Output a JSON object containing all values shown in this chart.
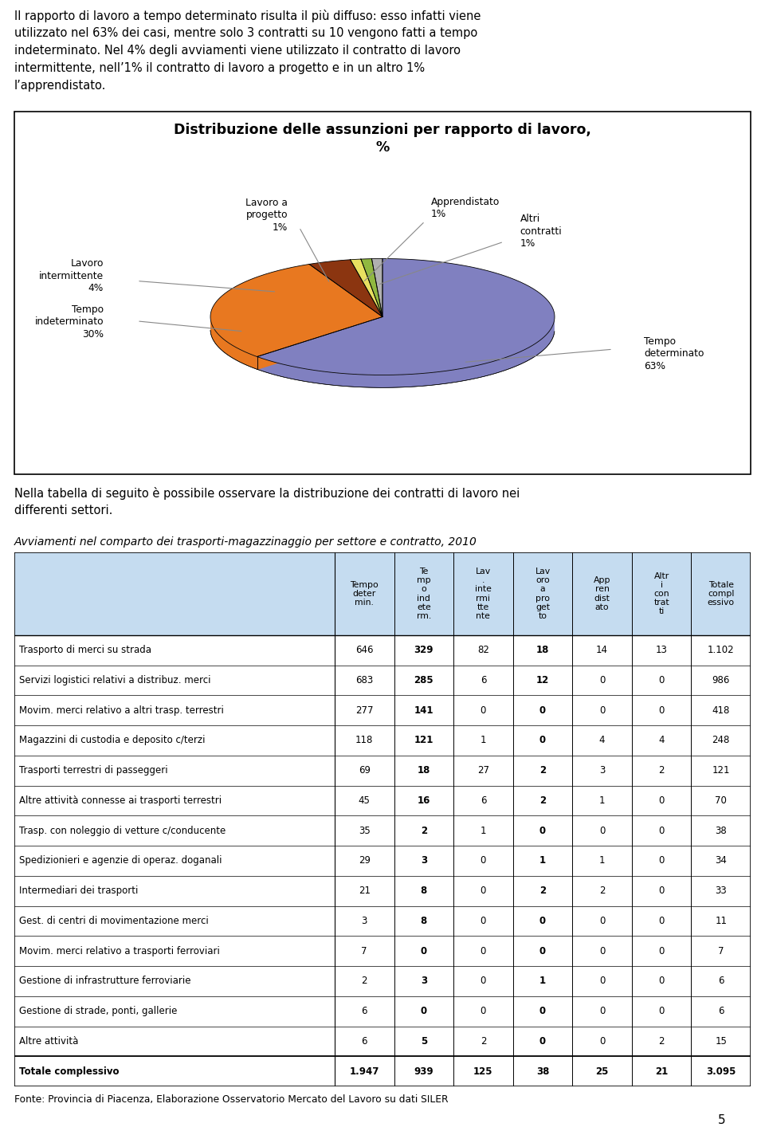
{
  "chart_title": "Distribuzione delle assunzioni per rapporto di lavoro,\n%",
  "pie_values": [
    63,
    30,
    4,
    1,
    1,
    1
  ],
  "pie_colors": [
    "#8080C0",
    "#E87820",
    "#8B3510",
    "#E8E060",
    "#90B840",
    "#B0B0B0"
  ],
  "pie_label_texts": [
    "Tempo\ndeterminato\n63%",
    "Tempo\nindeterminato\n30%",
    "Lavoro\nintermittente\n4%",
    "Lavoro a\nprogetto\n1%",
    "Apprendistato\n1%",
    "Altri\ncontratti\n1%"
  ],
  "below_chart_text": "Nella tabella di seguito è possibile osservare la distribuzione dei contratti di lavoro nei\ndifferenti settori.",
  "table_title": "Avviamenti nel comparto dei trasporti-magazzinaggio per settore e contratto, 2010",
  "col_headers": [
    "Tempo\ndeter\nmin.",
    "Te\nmp\no\nind\nete\nrm.",
    "Lav\n.\ninte\nrmi\ntte\nnte",
    "Lav\noro\na\npro\nget\nto",
    "App\nren\ndist\nato",
    "Altr\ni\ncon\ntrat\nti",
    "Totale\ncompl\nessivo"
  ],
  "row_labels": [
    "Trasporto di merci su strada",
    "Servizi logistici relativi a distribuz. merci",
    "Movim. merci relativo a altri trasp. terrestri",
    "Magazzini di custodia e deposito c/terzi",
    "Trasporti terrestri di passeggeri",
    "Altre attività connesse ai trasporti terrestri",
    "Trasp. con noleggio di vetture c/conducente",
    "Spedizionieri e agenzie di operaz. doganali",
    "Intermediari dei trasporti",
    "Gest. di centri di movimentazione merci",
    "Movim. merci relativo a trasporti ferroviari",
    "Gestione di infrastrutture ferroviarie",
    "Gestione di strade, ponti, gallerie",
    "Altre attività",
    "Totale complessivo"
  ],
  "table_data": [
    [
      "646",
      "329",
      "82",
      "18",
      "14",
      "13",
      "1.102"
    ],
    [
      "683",
      "285",
      "6",
      "12",
      "0",
      "0",
      "986"
    ],
    [
      "277",
      "141",
      "0",
      "0",
      "0",
      "0",
      "418"
    ],
    [
      "118",
      "121",
      "1",
      "0",
      "4",
      "4",
      "248"
    ],
    [
      "69",
      "18",
      "27",
      "2",
      "3",
      "2",
      "121"
    ],
    [
      "45",
      "16",
      "6",
      "2",
      "1",
      "0",
      "70"
    ],
    [
      "35",
      "2",
      "1",
      "0",
      "0",
      "0",
      "38"
    ],
    [
      "29",
      "3",
      "0",
      "1",
      "1",
      "0",
      "34"
    ],
    [
      "21",
      "8",
      "0",
      "2",
      "2",
      "0",
      "33"
    ],
    [
      "3",
      "8",
      "0",
      "0",
      "0",
      "0",
      "11"
    ],
    [
      "7",
      "0",
      "0",
      "0",
      "0",
      "0",
      "7"
    ],
    [
      "2",
      "3",
      "0",
      "1",
      "0",
      "0",
      "6"
    ],
    [
      "6",
      "0",
      "0",
      "0",
      "0",
      "0",
      "6"
    ],
    [
      "6",
      "5",
      "2",
      "0",
      "0",
      "2",
      "15"
    ],
    [
      "1.947",
      "939",
      "125",
      "38",
      "25",
      "21",
      "3.095"
    ]
  ],
  "bold_row_idx": 14,
  "bold_col_indices": [
    1,
    3
  ],
  "source_text": "Fonte: Provincia di Piacenza, Elaborazione Osservatorio Mercato del Lavoro su dati SILER",
  "page_number": "5",
  "header_bg_color": "#C5DCF0",
  "background_color": "#FFFFFF",
  "top_para": "Il rapporto di lavoro a tempo determinato risulta il più diffuso: esso infatti viene utilizzato nel 63% dei casi, mentre solo 3 contratti su 10 vengono fatti a tempo indeterminato. Nel 4% degli avviamenti viene utilizzato il contratto di lavoro intermittente, nell’1% il contratto di lavoro a progetto e in un altro 1% l’apprendistato."
}
